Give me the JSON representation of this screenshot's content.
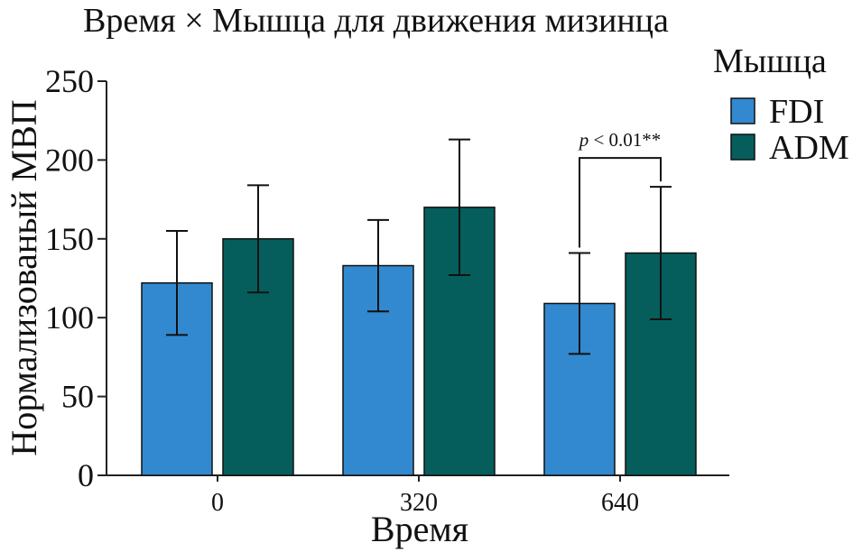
{
  "chart_data": {
    "type": "bar",
    "title": "Время × Мышца для движения мизинца",
    "xlabel": "Время",
    "ylabel": "Нормализованый МВП",
    "ylim": [
      0,
      250
    ],
    "yticks": [
      0,
      50,
      100,
      150,
      200,
      250
    ],
    "categories": [
      "0",
      "320",
      "640"
    ],
    "series": [
      {
        "name": "FDI",
        "color": "#3289CF",
        "values": [
          122,
          133,
          109
        ],
        "errors": [
          33,
          29,
          32
        ]
      },
      {
        "name": "ADM",
        "color": "#055E5C",
        "values": [
          150,
          170,
          141
        ],
        "errors": [
          34,
          43,
          42
        ]
      }
    ],
    "legend": {
      "title": "Мышца",
      "position": "top-right"
    },
    "annotation": {
      "category": "640",
      "text_prefix": "p",
      "text_rest": " < 0.01**"
    }
  }
}
